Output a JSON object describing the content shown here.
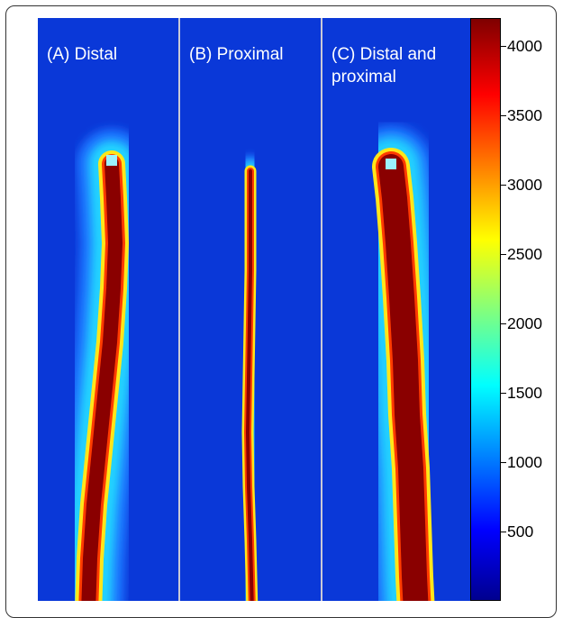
{
  "chart_data": {
    "type": "heatmap",
    "panels": [
      {
        "label": "(A) Distal"
      },
      {
        "label": "(B) Proximal"
      },
      {
        "label": "(C) Distal and proximal"
      }
    ],
    "colorbar": {
      "ticks": [
        500,
        1000,
        1500,
        2000,
        2500,
        3000,
        3500,
        4000
      ],
      "range": [
        0,
        4200
      ],
      "colormap": "jet"
    }
  },
  "colors": {
    "background": "#0a38d8",
    "max": "#7f0000",
    "separator": "#c9c9d6"
  }
}
